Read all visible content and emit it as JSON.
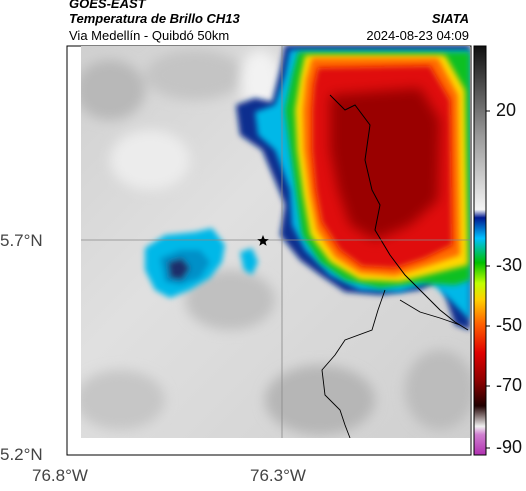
{
  "header": {
    "source": "GOES-EAST",
    "product": "Temperatura de Brillo CH13",
    "subtitle": "Via Medellín - Quibdó 50km",
    "org": "SIATA",
    "datetime": "2024-08-23 04:09"
  },
  "map": {
    "lat_labels": [
      "5.7°N",
      "5.2°N"
    ],
    "lon_labels": [
      "76.8°W",
      "76.3°W"
    ],
    "marker": "star"
  },
  "colorbar": {
    "ticks": [
      "20",
      "-30",
      "-50",
      "-70",
      "-90"
    ]
  }
}
